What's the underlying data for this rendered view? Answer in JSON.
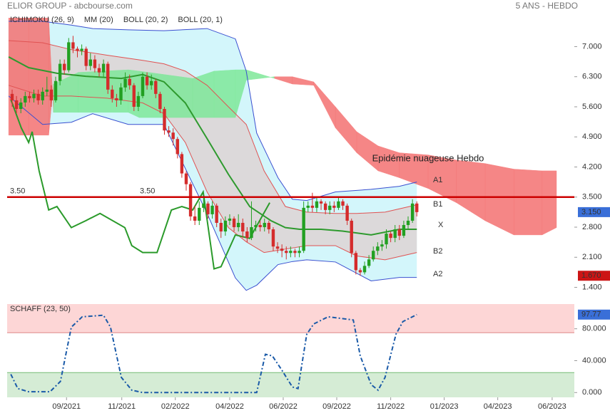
{
  "chart_data": [
    {
      "type": "candlestick",
      "title": "ELIOR GROUP - abcbourse.com",
      "subtitle": "5 ANS - HEBDO",
      "annotation": "Epidémie nuageuse Hebdo",
      "xlim": [
        -1.15,
        129.2
      ],
      "ylim": [
        1.26,
        7.67
      ],
      "yticks": [
        {
          "value": 1.4,
          "label": "1.400"
        },
        {
          "value": 2.1,
          "label": "2.100"
        },
        {
          "value": 2.8,
          "label": "2.800"
        },
        {
          "value": 3.5,
          "label": "3.500"
        },
        {
          "value": 4.2,
          "label": "4.200"
        },
        {
          "value": 4.9,
          "label": "4.900"
        },
        {
          "value": 5.6,
          "label": "5.600"
        },
        {
          "value": 6.3,
          "label": "6.300"
        },
        {
          "value": 7.0,
          "label": "7.000"
        }
      ],
      "candles": {
        "up_color": "#22a022",
        "down_color": "#d42c2c",
        "open": [
          5.9,
          5.75,
          5.55,
          5.7,
          5.85,
          5.8,
          5.9,
          5.75,
          5.95,
          6.0,
          5.75,
          6.2,
          6.6,
          6.45,
          7.1,
          6.95,
          6.9,
          6.95,
          6.55,
          6.7,
          6.5,
          6.4,
          6.6,
          6.0,
          5.8,
          5.75,
          6.05,
          6.25,
          6.1,
          5.6,
          5.85,
          6.3,
          6.1,
          6.2,
          5.9,
          5.55,
          5.05,
          5.0,
          4.85,
          4.5,
          4.05,
          3.8,
          3.05,
          2.95,
          3.25,
          3.35,
          3.1,
          3.3,
          2.9,
          2.7,
          2.95,
          3.0,
          2.8,
          2.9,
          2.7,
          2.55,
          2.8,
          2.85,
          2.8,
          2.9,
          2.75,
          2.35,
          2.3,
          2.25,
          2.2,
          2.25,
          2.2,
          2.25,
          3.25,
          3.3,
          3.25,
          3.4,
          3.35,
          3.2,
          3.3,
          3.25,
          3.4,
          3.3,
          2.95,
          2.2,
          1.8,
          1.75,
          1.9,
          2.05,
          2.25,
          2.35,
          2.4,
          2.65,
          2.55,
          2.75,
          2.6,
          2.85,
          2.95,
          3.35
        ],
        "high": [
          6.0,
          5.85,
          5.8,
          5.95,
          5.95,
          6.0,
          6.0,
          6.05,
          6.3,
          6.1,
          6.3,
          6.7,
          6.7,
          7.2,
          7.25,
          7.0,
          7.05,
          7.0,
          6.85,
          6.8,
          6.6,
          6.7,
          6.65,
          6.1,
          5.9,
          6.15,
          6.4,
          6.35,
          6.15,
          5.95,
          6.4,
          6.4,
          6.35,
          6.25,
          5.95,
          5.6,
          5.15,
          5.1,
          4.9,
          4.55,
          4.1,
          3.85,
          3.3,
          3.4,
          3.5,
          3.4,
          3.4,
          3.35,
          3.0,
          3.05,
          3.1,
          3.05,
          3.1,
          3.0,
          2.8,
          3.4,
          2.95,
          2.95,
          3.0,
          2.95,
          2.8,
          2.45,
          2.4,
          2.35,
          2.35,
          2.3,
          2.35,
          3.4,
          3.4,
          3.6,
          3.5,
          3.45,
          3.4,
          3.4,
          3.4,
          3.5,
          3.45,
          3.35,
          3.0,
          2.25,
          1.85,
          2.0,
          2.15,
          2.35,
          2.45,
          2.5,
          2.75,
          2.7,
          2.85,
          2.85,
          2.95,
          3.05,
          3.45,
          3.4
        ],
        "low": [
          5.6,
          5.45,
          5.45,
          5.6,
          5.7,
          5.7,
          5.65,
          5.65,
          5.85,
          5.6,
          5.7,
          6.1,
          6.35,
          6.4,
          6.85,
          6.75,
          6.8,
          6.45,
          6.45,
          6.4,
          6.3,
          6.3,
          5.9,
          5.7,
          5.6,
          5.65,
          5.95,
          6.0,
          5.5,
          5.5,
          5.8,
          6.0,
          6.0,
          5.8,
          5.45,
          4.95,
          4.9,
          4.7,
          4.4,
          3.95,
          3.65,
          2.95,
          2.85,
          2.85,
          3.15,
          3.0,
          3.0,
          2.8,
          2.55,
          2.6,
          2.85,
          2.7,
          2.7,
          2.55,
          2.45,
          2.5,
          2.7,
          2.7,
          2.7,
          2.65,
          2.25,
          2.2,
          2.1,
          2.05,
          2.1,
          2.1,
          2.1,
          2.2,
          3.15,
          3.15,
          3.15,
          3.2,
          3.1,
          3.1,
          3.15,
          3.2,
          3.2,
          2.85,
          2.1,
          1.7,
          1.67,
          1.7,
          1.85,
          2.0,
          2.15,
          2.25,
          2.3,
          2.45,
          2.45,
          2.5,
          2.55,
          2.75,
          2.9,
          3.05
        ],
        "close": [
          5.75,
          5.55,
          5.7,
          5.85,
          5.8,
          5.9,
          5.75,
          5.95,
          6.0,
          5.75,
          6.2,
          6.6,
          6.45,
          7.1,
          6.95,
          6.9,
          6.95,
          6.55,
          6.7,
          6.5,
          6.4,
          6.6,
          6.0,
          5.8,
          5.75,
          6.05,
          6.25,
          6.1,
          5.6,
          5.85,
          6.3,
          6.1,
          6.2,
          5.9,
          5.55,
          5.05,
          5.0,
          4.85,
          4.5,
          4.05,
          3.8,
          3.05,
          2.95,
          3.25,
          3.35,
          3.1,
          3.3,
          2.9,
          2.7,
          2.95,
          3.0,
          2.8,
          2.9,
          2.7,
          2.55,
          2.8,
          2.85,
          2.8,
          2.9,
          2.75,
          2.35,
          2.3,
          2.25,
          2.2,
          2.25,
          2.2,
          2.25,
          3.25,
          3.3,
          3.25,
          3.4,
          3.35,
          3.2,
          3.3,
          3.25,
          3.4,
          3.3,
          2.95,
          2.2,
          1.8,
          1.75,
          1.9,
          2.05,
          2.25,
          2.35,
          2.4,
          2.65,
          2.55,
          2.75,
          2.6,
          2.85,
          2.95,
          3.35,
          3.15
        ]
      },
      "indicators": [
        {
          "name": "ICHIMOKU (26, 9)",
          "color": "#111111",
          "bull_color": "#7fe89a",
          "bear_color": "#f47272",
          "lagging_color": "#2a9a2a",
          "cloud_x": [
            -0.8,
            3.8,
            8.4,
            9.5,
            15.2,
            26.7,
            29.2,
            41.5,
            46.4,
            51.3,
            53.8,
            60.3,
            64.4,
            69.3,
            74.3,
            79.2,
            84.1,
            89,
            95.6,
            102.1,
            108.7,
            115.3,
            121.8,
            125.1
          ],
          "span_a": [
            4.94,
            4.94,
            4.94,
            6.13,
            6.4,
            6.46,
            6.43,
            6.26,
            6.43,
            6.46,
            6.46,
            6.26,
            6.13,
            6.1,
            5.11,
            4.53,
            4.11,
            3.95,
            3.7,
            3.37,
            2.95,
            2.62,
            2.62,
            2.79
          ],
          "span_b": [
            7.67,
            7.67,
            7.67,
            5.47,
            5.47,
            5.47,
            5.35,
            5.35,
            5.35,
            5.35,
            6.22,
            6.3,
            6.3,
            6.18,
            5.6,
            5.02,
            4.69,
            4.53,
            4.48,
            4.36,
            4.28,
            4.15,
            4.11,
            4.11
          ],
          "lagging_x": [
            -0.3,
            2.1,
            3.8,
            4.6,
            6.2,
            8.4,
            10.3,
            13.6,
            16.9,
            20.2,
            25.9,
            27.5,
            30,
            33.3,
            36.6,
            39,
            41.5,
            43.9,
            46.4,
            48,
            51.3,
            54.6,
            59.2
          ],
          "lagging": [
            5.77,
            5.11,
            4.77,
            5.02,
            4.11,
            3.2,
            3.28,
            2.79,
            2.95,
            3.12,
            2.79,
            2.37,
            2.21,
            2.21,
            3.2,
            3.28,
            3.2,
            3.62,
            1.83,
            1.88,
            2.62,
            2.54,
            3.37
          ]
        },
        {
          "name": "MM (20)",
          "color": "#2e9a2e",
          "x": [
            -0.8,
            3.8,
            10.3,
            16.9,
            25.1,
            30,
            34.9,
            39.8,
            44.8,
            49.7,
            54.6,
            59.5,
            62.8,
            66.1,
            71,
            75.9,
            82.5,
            89,
            93
          ],
          "values": [
            6.76,
            6.51,
            6.38,
            6.31,
            6.26,
            6.35,
            6.18,
            5.69,
            4.86,
            4.03,
            3.28,
            2.95,
            2.79,
            2.75,
            2.75,
            2.71,
            2.62,
            2.75,
            2.75
          ]
        },
        {
          "name": "BOLL (20, 2)",
          "color": "#3a4fd0",
          "fill": "#d3f6fb",
          "x": [
            -0.8,
            7,
            13.6,
            18.5,
            26.7,
            34.9,
            44.8,
            51.3,
            53.8,
            56.2,
            61.1,
            64.4,
            67.7,
            74.3,
            82.5,
            89,
            93
          ],
          "upper": [
            7.59,
            7.59,
            7.5,
            7.42,
            7.39,
            7.37,
            7.42,
            7.18,
            6.43,
            4.99,
            3.95,
            3.45,
            3.42,
            3.62,
            3.68,
            3.75,
            3.85
          ],
          "lower": [
            5.85,
            5.19,
            5.24,
            5.44,
            5.19,
            5.19,
            3.12,
            1.62,
            1.33,
            1.45,
            1.93,
            2.0,
            2.04,
            1.99,
            1.55,
            1.63,
            1.63
          ]
        },
        {
          "name": "BOLL (20, 1)",
          "color": "#e05252",
          "fill": "#ddd3d3",
          "x": [
            -0.8,
            7,
            13.6,
            21.8,
            30,
            34.9,
            39.8,
            44.8,
            49.7,
            53.8,
            57.9,
            62.8,
            67.7,
            74.3,
            79.2,
            85.7,
            93
          ],
          "upper": [
            7.14,
            7.09,
            6.93,
            6.8,
            6.68,
            6.6,
            6.43,
            6.1,
            5.6,
            5.19,
            4.11,
            3.28,
            3.15,
            3.12,
            3.12,
            3.15,
            3.32
          ],
          "lower": [
            6.1,
            5.85,
            5.85,
            5.8,
            5.69,
            5.44,
            4.77,
            3.62,
            2.79,
            2.46,
            2.21,
            2.29,
            2.37,
            2.37,
            2.13,
            2.04,
            2.21
          ]
        }
      ],
      "hline": {
        "value": 3.5,
        "label": "3.50",
        "color": "#cc0000"
      },
      "level_labels": [
        {
          "text": "A1",
          "color": "#3535b8"
        },
        {
          "text": "B1",
          "color": "#222222"
        },
        {
          "text": "X",
          "color": "#2e9a2e"
        },
        {
          "text": "B2",
          "color": "#e0801e"
        },
        {
          "text": "A2",
          "color": "#3535b8"
        }
      ],
      "price_tags": [
        {
          "value": 3.15,
          "label": "3.150",
          "color": "#3a6fd8"
        },
        {
          "value": 1.67,
          "label": "1.670",
          "color": "#cc1515"
        }
      ]
    },
    {
      "type": "line",
      "xlim": [
        -1.15,
        129.2
      ],
      "xticks": [
        {
          "value": 12.5,
          "label": "09/2021"
        },
        {
          "value": 25.2,
          "label": "11/2021"
        },
        {
          "value": 37.5,
          "label": "02/2022"
        },
        {
          "value": 50,
          "label": "04/2022"
        },
        {
          "value": 62.3,
          "label": "06/2022"
        },
        {
          "value": 74.6,
          "label": "09/2022"
        },
        {
          "value": 87,
          "label": "11/2022"
        },
        {
          "value": 99.3,
          "label": "01/2023"
        },
        {
          "value": 111.6,
          "label": "04/2023"
        },
        {
          "value": 124.1,
          "label": "06/2023"
        }
      ],
      "ylim": [
        -6,
        111
      ],
      "yticks": [
        {
          "value": 0,
          "label": "0.000"
        },
        {
          "value": 40,
          "label": "40.000"
        },
        {
          "value": 80,
          "label": "80.000"
        }
      ],
      "overbought": 75,
      "oversold": 25,
      "overbought_color": "#fdd6d6",
      "oversold_color": "#d5ecd5",
      "series": [
        {
          "name": "SCHAFF (23, 50)",
          "color": "#1a5aa8",
          "x": [
            -0.3,
            1.3,
            3.8,
            8.7,
            11.1,
            13.6,
            16.1,
            21,
            22.6,
            25.1,
            27.5,
            30,
            56.2,
            58.2,
            59.8,
            62,
            64.4,
            65.7,
            67.7,
            69.3,
            72.6,
            78.4,
            80,
            82.5,
            84.1,
            85.7,
            88.2,
            89.8,
            93
          ],
          "values": [
            23,
            5,
            1,
            1,
            14,
            82,
            95,
            97,
            82,
            19,
            3,
            0,
            0,
            48,
            46,
            28,
            7,
            5,
            73,
            86,
            95,
            91,
            46,
            10,
            3,
            19,
            73,
            89,
            97.77
          ]
        }
      ],
      "tag": {
        "value": 97.77,
        "label": "97.77",
        "color": "#3a6fd8"
      }
    }
  ]
}
